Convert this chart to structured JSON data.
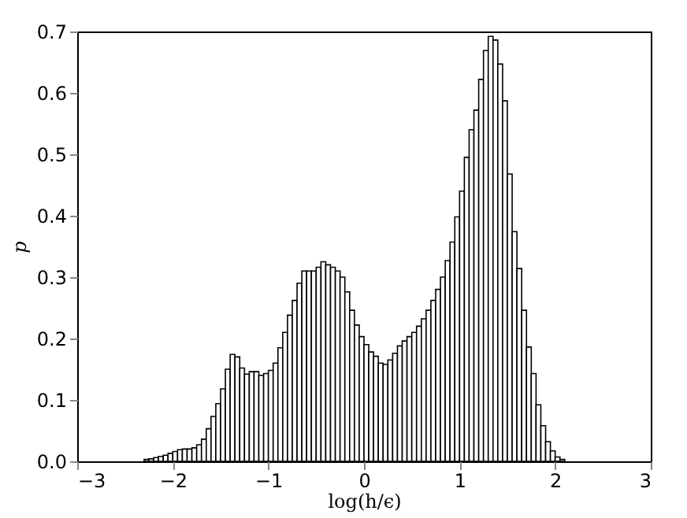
{
  "chart_data": {
    "type": "histogram",
    "xlabel": "log(h/ϵ)",
    "ylabel": "p",
    "color": "#ffffff",
    "bins": [
      -2.5,
      -2.45,
      -2.4,
      -2.35,
      -2.3,
      -2.25,
      -2.2,
      -2.15,
      -2.1,
      -2.05,
      -2.0,
      -1.95,
      -1.9,
      -1.85,
      -1.8,
      -1.75,
      -1.7,
      -1.65,
      -1.6,
      -1.55,
      -1.5,
      -1.45,
      -1.4,
      -1.35,
      -1.3,
      -1.25,
      -1.2,
      -1.15,
      -1.1,
      -1.05,
      -1.0,
      -0.95,
      -0.9,
      -0.85,
      -0.8,
      -0.75,
      -0.7,
      -0.65,
      -0.6,
      -0.55,
      -0.5,
      -0.45,
      -0.4,
      -0.35,
      -0.3,
      -0.25,
      -0.2,
      -0.15,
      -0.1,
      -0.05,
      0.0,
      0.05,
      0.1,
      0.15,
      0.2,
      0.25,
      0.3,
      0.35,
      0.4,
      0.45,
      0.5,
      0.55,
      0.6,
      0.65,
      0.7,
      0.75,
      0.8,
      0.85,
      0.9,
      0.95,
      1.0,
      1.05,
      1.1,
      1.15,
      1.2,
      1.25,
      1.3,
      1.35,
      1.4,
      1.45,
      1.5,
      1.55,
      1.6,
      1.65,
      1.7,
      1.75,
      1.8,
      1.85,
      1.9,
      1.95,
      2.0,
      2.05,
      2.1,
      2.15
    ],
    "values": [
      null,
      null,
      null,
      null,
      0.003,
      0.004,
      0.006,
      0.008,
      0.01,
      0.013,
      0.016,
      0.019,
      0.02,
      0.02,
      0.022,
      0.027,
      0.036,
      0.053,
      0.073,
      0.094,
      0.118,
      0.15,
      0.174,
      0.17,
      0.152,
      0.142,
      0.146,
      0.146,
      0.14,
      0.143,
      0.148,
      0.16,
      0.185,
      0.21,
      0.238,
      0.262,
      0.29,
      0.31,
      0.31,
      0.31,
      0.316,
      0.325,
      0.32,
      0.316,
      0.31,
      0.3,
      0.276,
      0.246,
      0.222,
      0.203,
      0.19,
      0.178,
      0.171,
      0.16,
      0.158,
      0.165,
      0.176,
      0.188,
      0.196,
      0.203,
      0.21,
      0.22,
      0.232,
      0.246,
      0.262,
      0.28,
      0.3,
      0.327,
      0.357,
      0.398,
      0.44,
      0.495,
      0.54,
      0.572,
      0.622,
      0.669,
      0.692,
      0.686,
      0.647,
      0.587,
      0.468,
      0.374,
      0.314,
      0.246,
      0.186,
      0.143,
      0.092,
      0.058,
      0.032,
      0.017,
      0.007,
      0.003,
      null
    ],
    "xlim": [
      -3,
      3
    ],
    "xticks": [
      {
        "value": -3,
        "label": "−3"
      },
      {
        "value": -2,
        "label": "−2"
      },
      {
        "value": -1,
        "label": "−1"
      },
      0,
      1,
      2,
      3
    ],
    "ylim": [
      0,
      0.7
    ],
    "yticks": [
      {
        "value": 0,
        "label": "0.0"
      },
      0.1,
      0.2,
      0.3,
      0.4,
      0.5,
      0.6,
      0.7
    ],
    "grid": false
  }
}
